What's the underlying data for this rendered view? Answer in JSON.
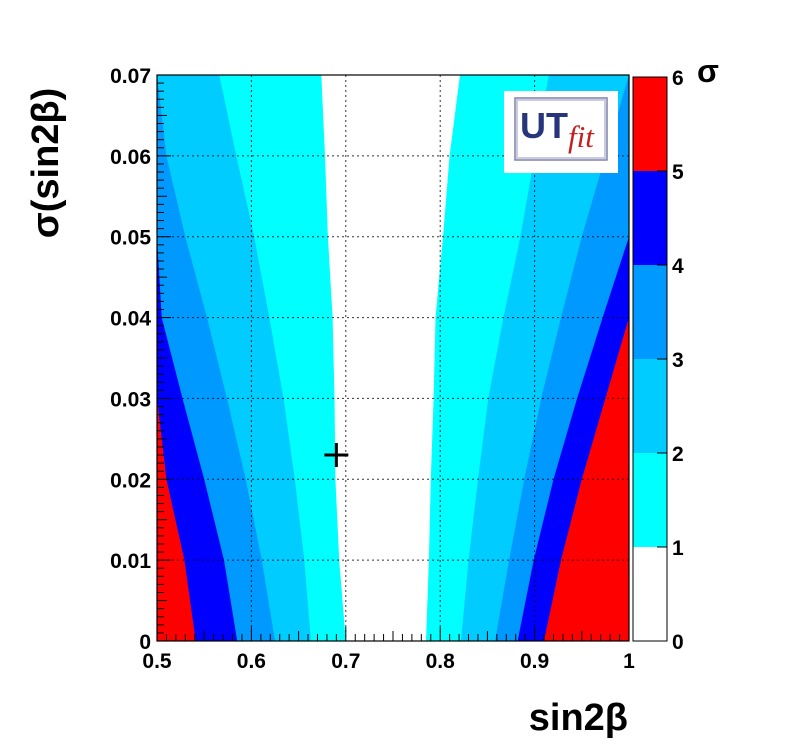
{
  "chart_data": {
    "type": "heatmap",
    "title": "",
    "xlabel": "sin2β",
    "ylabel": "σ(sin2β)",
    "xlim": [
      0.5,
      1.0
    ],
    "ylim": [
      0,
      0.07
    ],
    "xticks": [
      "0.5",
      "0.6",
      "0.7",
      "0.8",
      "0.9",
      "1"
    ],
    "yticks": [
      "0",
      "0.01",
      "0.02",
      "0.03",
      "0.04",
      "0.05",
      "0.06",
      "0.07"
    ],
    "grid": true,
    "colorbar": {
      "label": "σ",
      "ticks": [
        "0",
        "1",
        "2",
        "3",
        "4",
        "5",
        "6"
      ],
      "levels": [
        {
          "from": 0,
          "to": 1,
          "color": "#ffffff"
        },
        {
          "from": 1,
          "to": 2,
          "color": "#00ffff"
        },
        {
          "from": 2,
          "to": 3,
          "color": "#00ccff"
        },
        {
          "from": 3,
          "to": 4,
          "color": "#0099ff"
        },
        {
          "from": 4,
          "to": 5,
          "color": "#0000ff"
        },
        {
          "from": 5,
          "to": 6,
          "color": "#ff0000"
        }
      ]
    },
    "contours": {
      "left": {
        "y": [
          0,
          0.01,
          0.02,
          0.03,
          0.04,
          0.05,
          0.06,
          0.07
        ],
        "boundaries": [
          {
            "sigma": 1,
            "x": [
              0.7,
              0.693,
              0.689,
              0.688,
              0.686,
              0.681,
              0.678,
              0.674
            ]
          },
          {
            "sigma": 2,
            "x": [
              0.663,
              0.656,
              0.646,
              0.634,
              0.619,
              0.603,
              0.584,
              0.566
            ]
          },
          {
            "sigma": 3,
            "x": [
              0.625,
              0.611,
              0.594,
              0.574,
              0.553,
              0.53,
              0.51,
              0.5
            ]
          },
          {
            "sigma": 4,
            "x": [
              0.585,
              0.571,
              0.55,
              0.527,
              0.505,
              0.5,
              0.5,
              0.5
            ]
          },
          {
            "sigma": 5,
            "x": [
              0.541,
              0.529,
              0.51,
              0.5,
              0.5,
              0.5,
              0.5,
              0.5
            ]
          }
        ]
      },
      "right": {
        "y": [
          0,
          0.01,
          0.02,
          0.03,
          0.04,
          0.05,
          0.06,
          0.07
        ],
        "boundaries": [
          {
            "sigma": 1,
            "x": [
              0.785,
              0.788,
              0.79,
              0.793,
              0.795,
              0.803,
              0.81,
              0.821
            ]
          },
          {
            "sigma": 2,
            "x": [
              0.822,
              0.83,
              0.84,
              0.851,
              0.867,
              0.885,
              0.9,
              0.915
            ]
          },
          {
            "sigma": 3,
            "x": [
              0.858,
              0.873,
              0.889,
              0.907,
              0.928,
              0.95,
              0.975,
              1.0
            ]
          },
          {
            "sigma": 4,
            "x": [
              0.882,
              0.899,
              0.92,
              0.945,
              0.972,
              1.0,
              1.0,
              1.0
            ]
          },
          {
            "sigma": 5,
            "x": [
              0.91,
              0.928,
              0.95,
              0.975,
              1.0,
              1.0,
              1.0,
              1.0
            ]
          }
        ]
      }
    },
    "marker": {
      "x": 0.69,
      "y": 0.023,
      "symbol": "+"
    }
  },
  "logo": {
    "text_main": "UT",
    "text_sub": "fit"
  }
}
